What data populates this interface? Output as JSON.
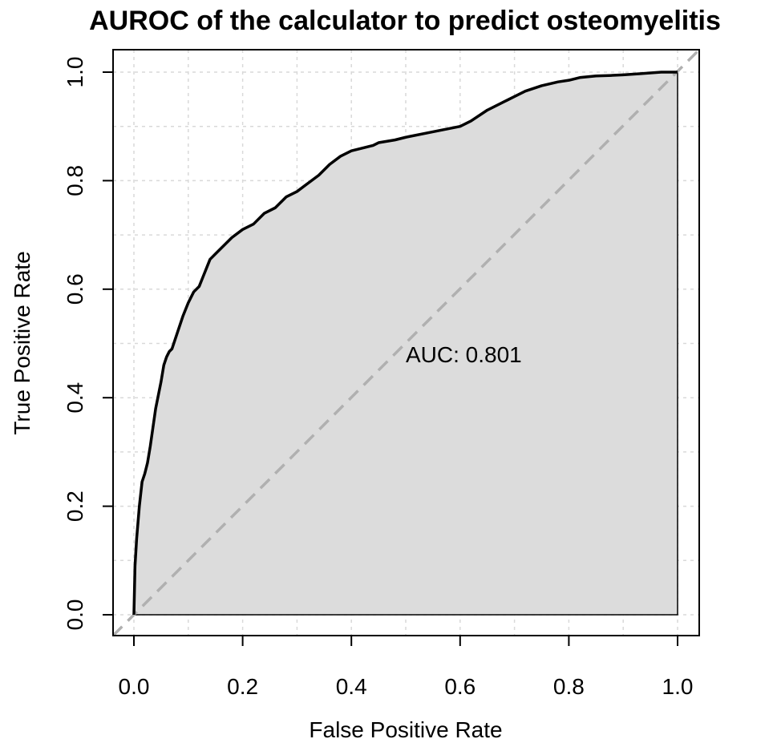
{
  "chart_data": {
    "type": "line",
    "title": "AUROC of the calculator to predict osteomyelitis",
    "xlabel": "False Positive Rate",
    "ylabel": "True Positive Rate",
    "xlim": [
      0,
      1
    ],
    "ylim": [
      0,
      1
    ],
    "xticks": [
      "0.0",
      "0.2",
      "0.4",
      "0.6",
      "0.8",
      "1.0"
    ],
    "yticks": [
      "0.0",
      "0.2",
      "0.4",
      "0.6",
      "0.8",
      "1.0"
    ],
    "grid": true,
    "annotation": {
      "text": "AUC: 0.801",
      "x": 0.5,
      "y": 0.48
    },
    "colors": {
      "curve": "#000000",
      "fill": "#dcdcdc",
      "diagonal": "#b0b0b0",
      "grid": "#d9d9d9"
    },
    "series": [
      {
        "x": [
          0,
          0.002,
          0.005,
          0.01,
          0.015,
          0.02,
          0.025,
          0.03,
          0.04,
          0.05,
          0.055,
          0.06,
          0.065,
          0.07,
          0.08,
          0.09,
          0.1,
          0.11,
          0.12,
          0.13,
          0.14,
          0.15,
          0.16,
          0.17,
          0.18,
          0.2,
          0.22,
          0.24,
          0.26,
          0.27,
          0.28,
          0.3,
          0.32,
          0.34,
          0.36,
          0.38,
          0.4,
          0.42,
          0.44,
          0.45,
          0.48,
          0.5,
          0.55,
          0.6,
          0.62,
          0.65,
          0.68,
          0.7,
          0.72,
          0.75,
          0.78,
          0.8,
          0.82,
          0.85,
          0.88,
          0.9,
          0.93,
          0.97,
          0.99,
          1.0
        ],
        "y": [
          0,
          0.09,
          0.14,
          0.2,
          0.245,
          0.26,
          0.28,
          0.31,
          0.38,
          0.43,
          0.46,
          0.475,
          0.485,
          0.49,
          0.52,
          0.55,
          0.575,
          0.595,
          0.605,
          0.63,
          0.655,
          0.665,
          0.675,
          0.685,
          0.695,
          0.71,
          0.72,
          0.74,
          0.75,
          0.76,
          0.77,
          0.78,
          0.795,
          0.81,
          0.83,
          0.845,
          0.855,
          0.86,
          0.865,
          0.87,
          0.875,
          0.88,
          0.89,
          0.9,
          0.91,
          0.93,
          0.945,
          0.955,
          0.965,
          0.975,
          0.982,
          0.985,
          0.99,
          0.993,
          0.994,
          0.995,
          0.997,
          1.0,
          1.0,
          1.0
        ]
      }
    ]
  }
}
